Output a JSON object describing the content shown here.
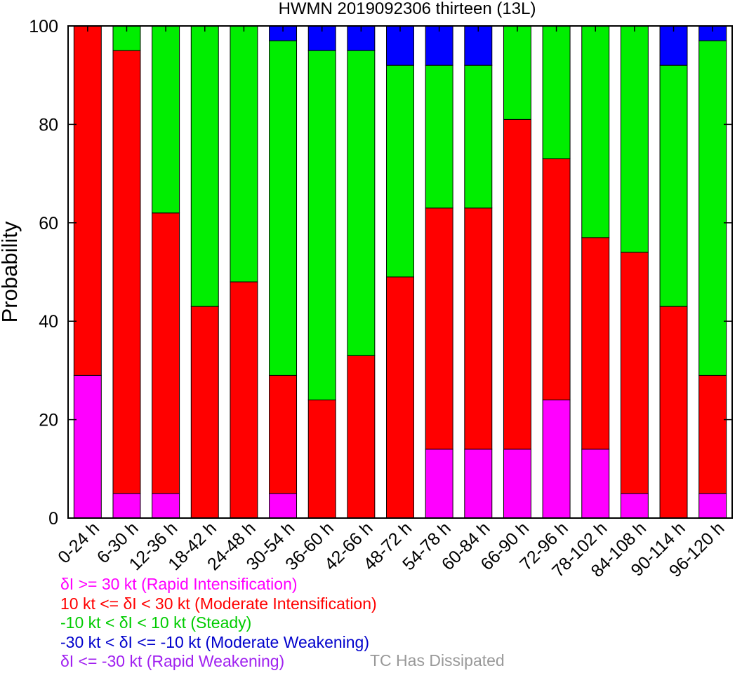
{
  "chart_data": {
    "type": "bar",
    "stacked": true,
    "title": "HWMN 2019092306 thirteen (13L)",
    "xlabel": "",
    "ylabel": "Probability",
    "ylim": [
      0,
      100
    ],
    "yticks": [
      "0",
      "20",
      "40",
      "60",
      "80",
      "100"
    ],
    "categories": [
      "0-24 h",
      "6-30 h",
      "12-36 h",
      "18-42 h",
      "24-48 h",
      "30-54 h",
      "36-60 h",
      "42-66 h",
      "48-72 h",
      "54-78 h",
      "60-84 h",
      "66-90 h",
      "72-96 h",
      "78-102 h",
      "84-108 h",
      "90-114 h",
      "96-120 h"
    ],
    "series": [
      {
        "key": "rapid_weakening",
        "color": "#a020f0",
        "values": [
          0,
          0,
          0,
          0,
          0,
          0,
          0,
          0,
          0,
          0,
          0,
          0,
          0,
          0,
          0,
          0,
          0
        ]
      },
      {
        "key": "rapid_intensification",
        "color": "#ff00ff",
        "values": [
          29,
          5,
          5,
          0,
          0,
          5,
          0,
          0,
          0,
          14,
          14,
          14,
          24,
          14,
          5,
          0,
          5
        ]
      },
      {
        "key": "moderate_intensification",
        "color": "#ff0000",
        "values": [
          71,
          90,
          57,
          43,
          48,
          24,
          24,
          33,
          49,
          49,
          49,
          67,
          49,
          43,
          49,
          43,
          24
        ]
      },
      {
        "key": "steady",
        "color": "#00ee00",
        "values": [
          0,
          5,
          38,
          57,
          52,
          68,
          71,
          62,
          43,
          29,
          29,
          19,
          27,
          43,
          46,
          49,
          68
        ]
      },
      {
        "key": "moderate_weakening",
        "color": "#0000ff",
        "values": [
          0,
          0,
          0,
          0,
          0,
          3,
          5,
          5,
          8,
          8,
          8,
          0,
          0,
          0,
          0,
          8,
          3
        ]
      }
    ],
    "grid": false
  },
  "legend": {
    "items": [
      {
        "text": "δI >= 30 kt (Rapid Intensification)",
        "color": "#ff00ff"
      },
      {
        "text": "10 kt <= δI < 30 kt (Moderate Intensification)",
        "color": "#ff0000"
      },
      {
        "text": "-10 kt < δI < 10 kt (Steady)",
        "color": "#00cc00"
      },
      {
        "text": "-30 kt < δI <= -10 kt (Moderate Weakening)",
        "color": "#0000cc"
      },
      {
        "text": "δI <= -30 kt (Rapid Weakening)",
        "color": "#a020f0"
      }
    ],
    "dissipated": {
      "text": "TC Has Dissipated",
      "color": "#999999"
    }
  }
}
